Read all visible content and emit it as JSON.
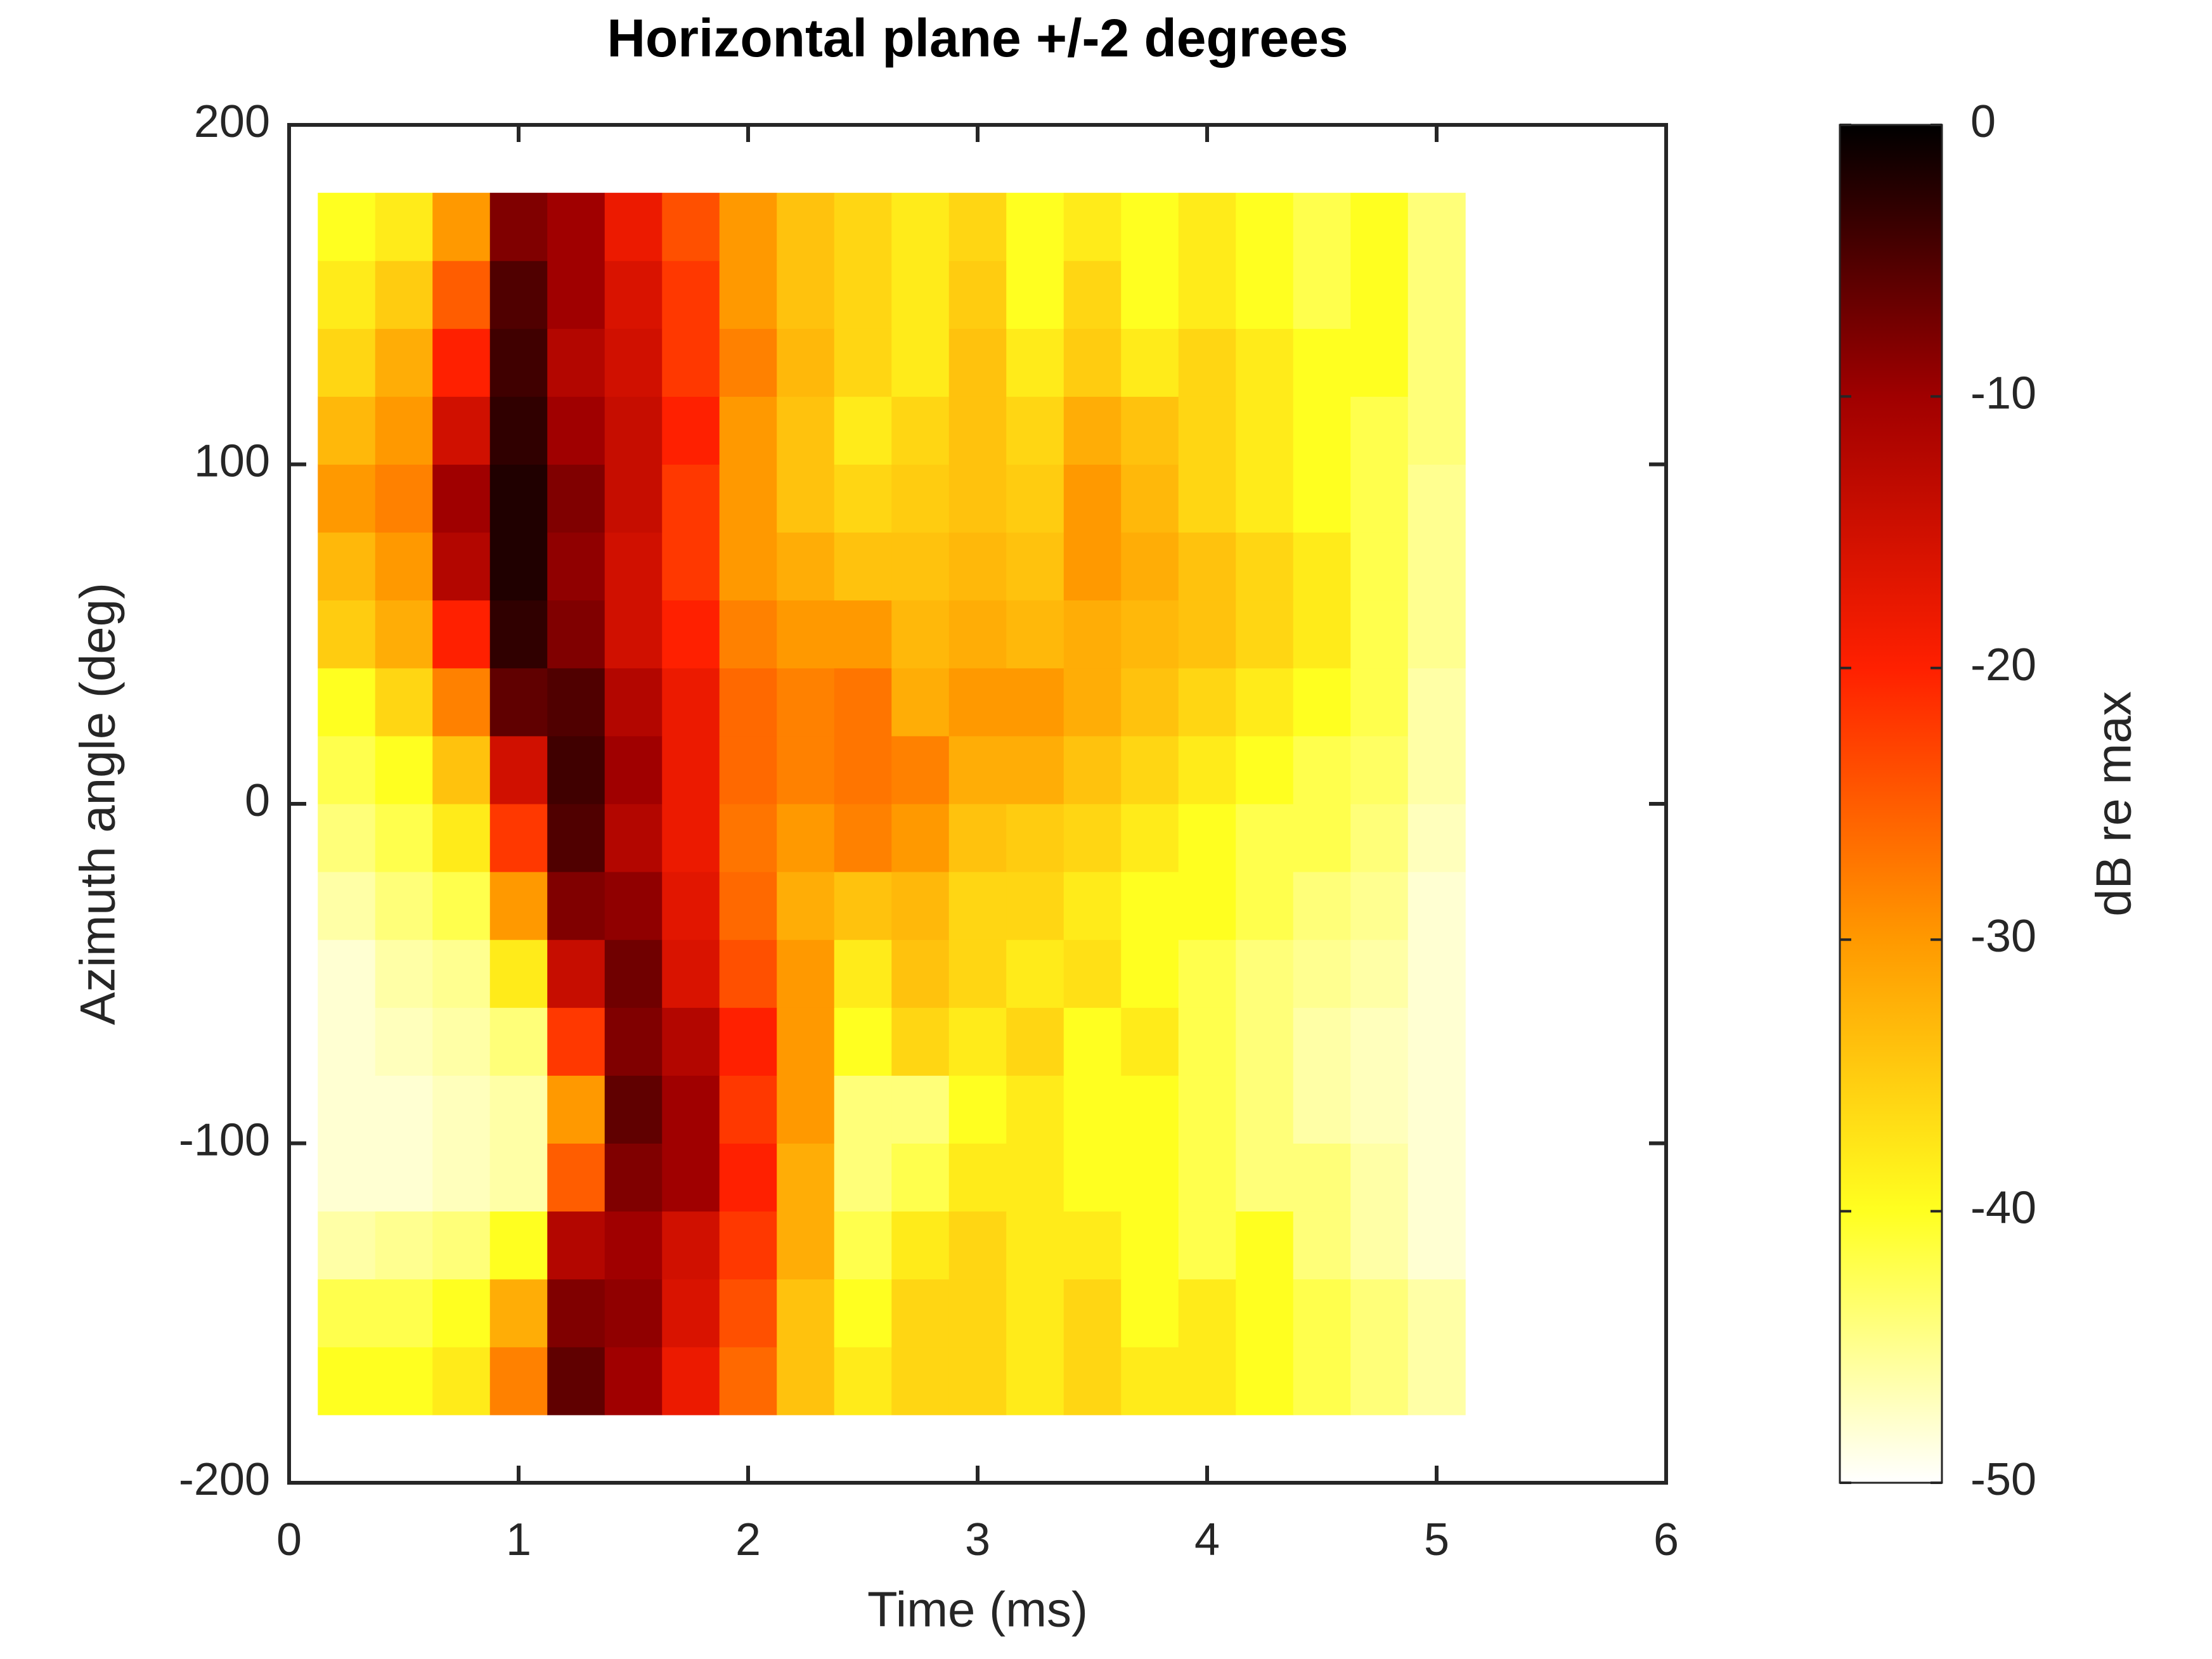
{
  "chart_data": {
    "type": "heatmap",
    "title": "Horizontal plane +/-2 degrees",
    "x_label": "Time (ms)",
    "y_label": "Azimuth angle (deg)",
    "colorbar_label": "dB re max",
    "xlim": [
      0,
      6
    ],
    "xticks": [
      0,
      1,
      2,
      3,
      4,
      5,
      6
    ],
    "ylim": [
      -200,
      200
    ],
    "yticks": [
      -200,
      -100,
      0,
      100,
      200
    ],
    "clim": [
      -50,
      0
    ],
    "cticks": [
      -50,
      -40,
      -30,
      -20,
      -10,
      0
    ],
    "colormap": [
      "#ffffff",
      "#ffff20",
      "#ff9900",
      "#ff2000",
      "#a00000",
      "#000000"
    ],
    "x": [
      0.25,
      0.5,
      0.75,
      1.0,
      1.25,
      1.5,
      1.75,
      2.0,
      2.25,
      2.5,
      2.75,
      3.0,
      3.25,
      3.5,
      3.75,
      4.0,
      4.25,
      4.5,
      4.75,
      5.0
    ],
    "y": [
      -170,
      -150,
      -130,
      -110,
      -90,
      -70,
      -50,
      -30,
      -10,
      10,
      30,
      50,
      70,
      90,
      110,
      130,
      150,
      170
    ],
    "z": [
      [
        -40,
        -40,
        -38,
        -28,
        -6,
        -10,
        -18,
        -26,
        -34,
        -38,
        -36,
        -36,
        -38,
        -36,
        -38,
        -38,
        -40,
        -42,
        -44,
        -46
      ],
      [
        -42,
        -42,
        -40,
        -32,
        -8,
        -9,
        -16,
        -24,
        -34,
        -40,
        -36,
        -36,
        -38,
        -36,
        -40,
        -38,
        -40,
        -42,
        -44,
        -46
      ],
      [
        -46,
        -45,
        -44,
        -40,
        -12,
        -10,
        -15,
        -22,
        -32,
        -42,
        -38,
        -36,
        -38,
        -38,
        -40,
        -42,
        -40,
        -44,
        -46,
        -48
      ],
      [
        -48,
        -48,
        -47,
        -46,
        -25,
        -8,
        -10,
        -20,
        -32,
        -44,
        -42,
        -38,
        -38,
        -40,
        -40,
        -42,
        -44,
        -44,
        -46,
        -48
      ],
      [
        -48,
        -48,
        -47,
        -46,
        -30,
        -6,
        -10,
        -22,
        -30,
        -44,
        -44,
        -40,
        -38,
        -40,
        -40,
        -42,
        -44,
        -46,
        -47,
        -48
      ],
      [
        -48,
        -47,
        -46,
        -44,
        -22,
        -8,
        -12,
        -20,
        -30,
        -40,
        -36,
        -38,
        -36,
        -40,
        -38,
        -42,
        -44,
        -46,
        -47,
        -48
      ],
      [
        -48,
        -46,
        -45,
        -38,
        -14,
        -7,
        -16,
        -24,
        -30,
        -38,
        -34,
        -36,
        -38,
        -37,
        -40,
        -42,
        -44,
        -45,
        -46,
        -48
      ],
      [
        -46,
        -44,
        -42,
        -30,
        -8,
        -9,
        -17,
        -26,
        -32,
        -34,
        -33,
        -36,
        -36,
        -38,
        -40,
        -40,
        -42,
        -44,
        -45,
        -48
      ],
      [
        -44,
        -42,
        -38,
        -22,
        -5,
        -12,
        -18,
        -27,
        -30,
        -28,
        -30,
        -34,
        -35,
        -36,
        -38,
        -40,
        -42,
        -42,
        -44,
        -47
      ],
      [
        -42,
        -40,
        -34,
        -15,
        -4,
        -10,
        -18,
        -26,
        -28,
        -27,
        -28,
        -32,
        -32,
        -34,
        -36,
        -38,
        -40,
        -42,
        -43,
        -46
      ],
      [
        -40,
        -36,
        -28,
        -6,
        -5,
        -12,
        -18,
        -26,
        -28,
        -27,
        -32,
        -30,
        -30,
        -32,
        -34,
        -36,
        -38,
        -40,
        -42,
        -46
      ],
      [
        -35,
        -32,
        -20,
        -3,
        -8,
        -15,
        -20,
        -28,
        -30,
        -30,
        -33,
        -32,
        -33,
        -32,
        -33,
        -34,
        -36,
        -38,
        -42,
        -45
      ],
      [
        -33,
        -30,
        -12,
        -2,
        -9,
        -15,
        -22,
        -30,
        -32,
        -34,
        -34,
        -33,
        -34,
        -30,
        -32,
        -34,
        -36,
        -38,
        -42,
        -45
      ],
      [
        -30,
        -28,
        -10,
        -2,
        -8,
        -14,
        -22,
        -30,
        -34,
        -36,
        -35,
        -34,
        -35,
        -30,
        -33,
        -36,
        -38,
        -40,
        -42,
        -45
      ],
      [
        -33,
        -30,
        -15,
        -3,
        -10,
        -14,
        -20,
        -30,
        -34,
        -38,
        -36,
        -34,
        -36,
        -32,
        -34,
        -36,
        -38,
        -40,
        -42,
        -44
      ],
      [
        -36,
        -32,
        -20,
        -4,
        -12,
        -15,
        -22,
        -28,
        -33,
        -36,
        -38,
        -34,
        -38,
        -35,
        -38,
        -36,
        -38,
        -40,
        -40,
        -44
      ],
      [
        -38,
        -35,
        -25,
        -5,
        -10,
        -16,
        -22,
        -30,
        -34,
        -36,
        -38,
        -35,
        -40,
        -36,
        -40,
        -38,
        -40,
        -42,
        -40,
        -44
      ],
      [
        -40,
        -38,
        -30,
        -8,
        -10,
        -18,
        -24,
        -30,
        -34,
        -36,
        -38,
        -36,
        -40,
        -38,
        -40,
        -38,
        -40,
        -42,
        -40,
        -44
      ]
    ]
  }
}
